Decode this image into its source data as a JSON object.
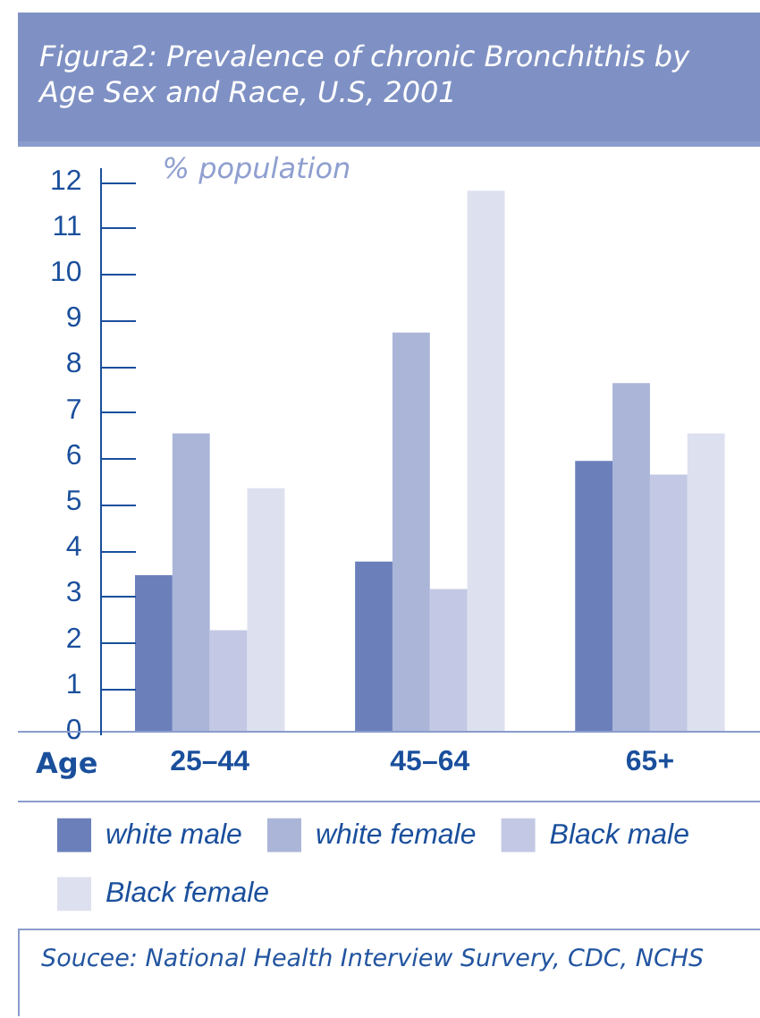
{
  "chart_data": {
    "type": "bar",
    "title": "Figura2: Prevalence of chronic Bronchithis by Age Sex and Race, U.S, 2001",
    "xlabel": "Age",
    "ylabel": "% population",
    "categories": [
      "25–44",
      "45–64",
      "65+"
    ],
    "series": [
      {
        "name": "white male",
        "color": "#6b80bb",
        "values": [
          3.4,
          3.7,
          5.9
        ]
      },
      {
        "name": "white female",
        "color": "#aab5d8",
        "values": [
          6.5,
          8.7,
          7.6
        ]
      },
      {
        "name": "Black male",
        "color": "#c3c9e4",
        "values": [
          2.2,
          3.1,
          5.6
        ]
      },
      {
        "name": "Black female",
        "color": "#dde0ef",
        "values": [
          5.3,
          11.8,
          6.5
        ]
      }
    ],
    "ylim": [
      0,
      12
    ],
    "yticks": [
      0,
      1,
      2,
      3,
      4,
      5,
      6,
      7,
      8,
      9,
      10,
      11,
      12
    ],
    "grid": false,
    "legend": "bottom",
    "annotations": [
      "Soucee: National Health Interview Survery, CDC, NCHS"
    ]
  }
}
